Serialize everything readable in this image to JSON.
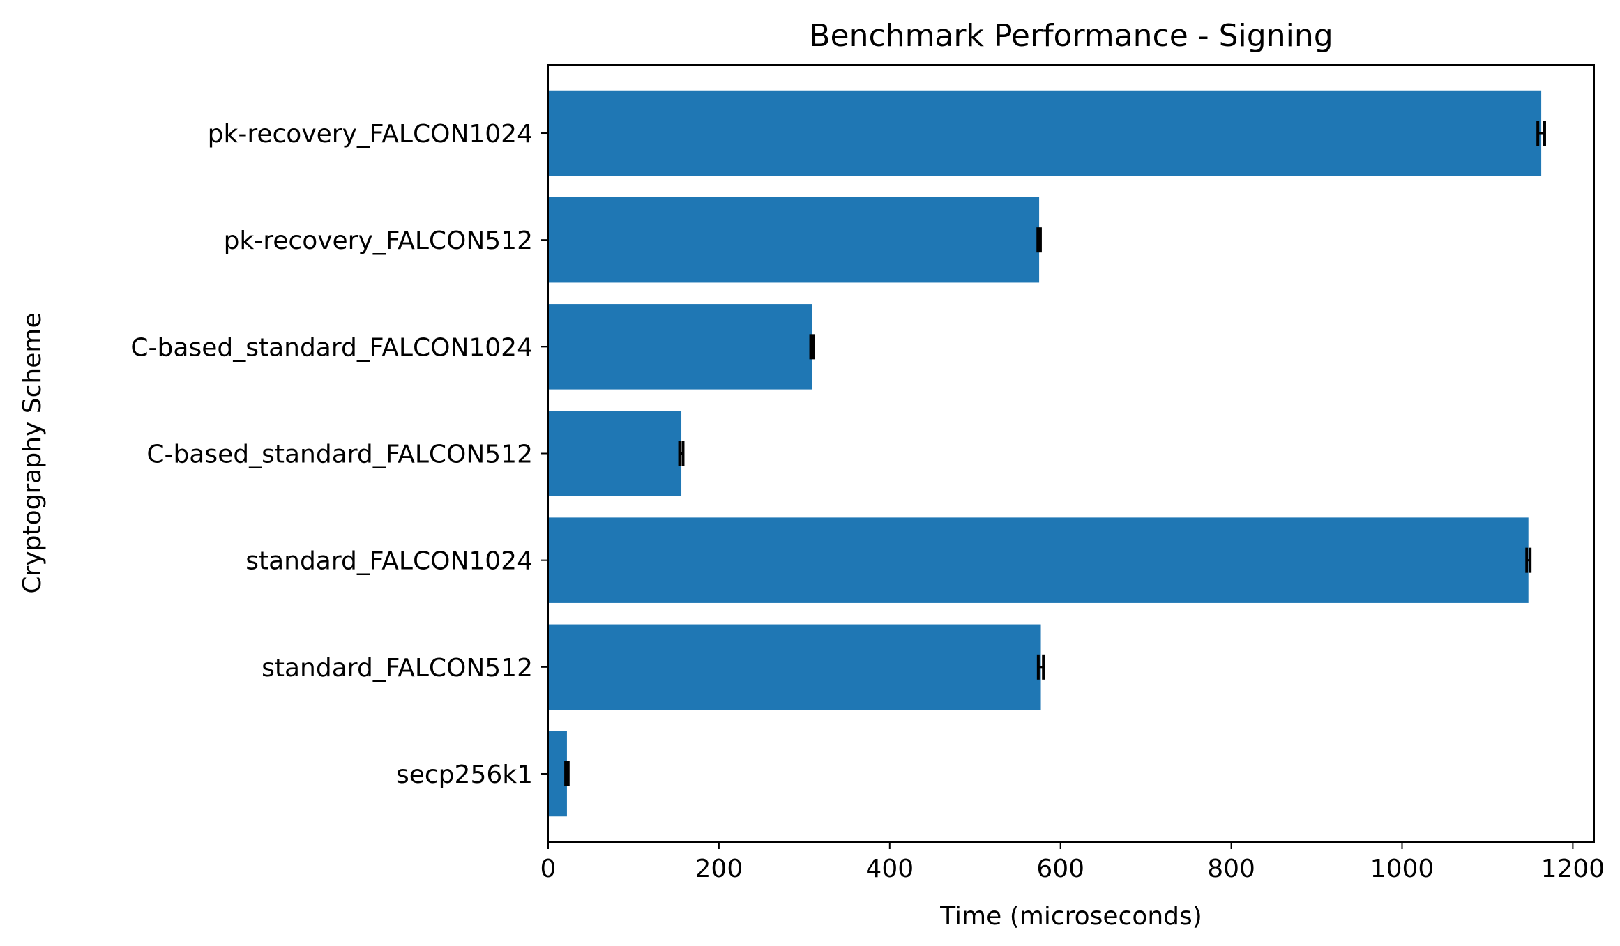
{
  "chart_data": {
    "type": "bar",
    "orientation": "horizontal",
    "title": "Benchmark Performance - Signing",
    "xlabel": "Time (microseconds)",
    "ylabel": "Cryptography Scheme",
    "xlim": [
      0,
      1225
    ],
    "xticks": [
      0,
      200,
      400,
      600,
      800,
      1000,
      1200
    ],
    "grid": false,
    "bar_color": "#1f77b4",
    "error_color": "#000000",
    "categories": [
      "secp256k1",
      "standard_FALCON512",
      "standard_FALCON1024",
      "C-based_standard_FALCON512",
      "C-based_standard_FALCON1024",
      "pk-recovery_FALCON512",
      "pk-recovery_FALCON1024"
    ],
    "values": [
      22,
      577,
      1148,
      156,
      309,
      575,
      1163
    ],
    "errors": [
      1.5,
      3,
      2,
      2,
      1.5,
      1.5,
      4
    ]
  }
}
